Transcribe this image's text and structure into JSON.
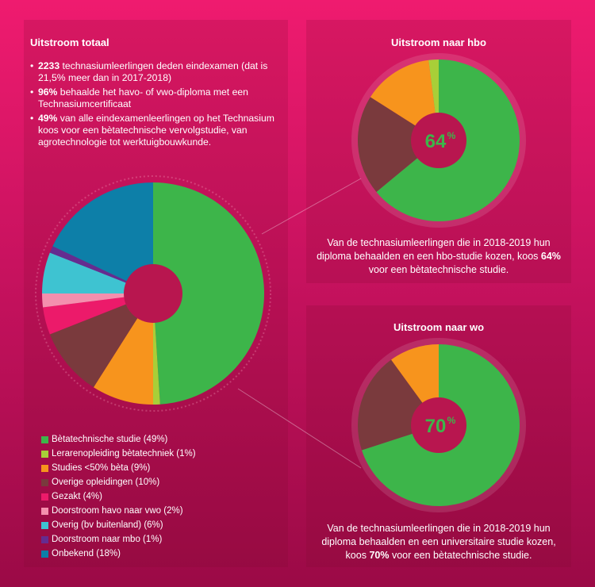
{
  "colors": {
    "green": "#3db54a",
    "lime": "#a8cf38",
    "orange": "#f7941d",
    "brown": "#7a3a3d",
    "pink": "#ec1a6a",
    "lightpink": "#f48fae",
    "cyan": "#3ec3d1",
    "purple": "#652c90",
    "blue": "#0d7fa8",
    "center": "#b8164f"
  },
  "left": {
    "title": "Uitstroom totaal",
    "bullets": [
      {
        "bold": "2233",
        "text": " technasiumleerlingen deden eindexamen (dat is 21,5% meer dan in 2017-2018)"
      },
      {
        "bold": "96%",
        "text": " behaalde het havo- of vwo-diploma met een Technasiumcertificaat"
      },
      {
        "bold": "49%",
        "text": " van alle eindexamenleerlingen op het Technasium koos voor een bètatechnische vervolgstudie, van agrotechnologie tot werktuigbouwkunde."
      }
    ]
  },
  "hbo": {
    "title": "Uitstroom naar hbo",
    "center_value": "64",
    "center_unit": "%",
    "caption_pre": "Van de technasiumleerlingen die in 2018-2019 hun diploma behaalden en een hbo-studie kozen, koos ",
    "caption_bold": "64%",
    "caption_post": " voor een bètatechnische studie."
  },
  "wo": {
    "title": "Uitstroom naar wo",
    "center_value": "70",
    "center_unit": "%",
    "caption_pre": "Van de technasiumleerlingen die in 2018-2019 hun diploma behaalden en een universitaire studie kozen, koos ",
    "caption_bold": "70%",
    "caption_post": " voor een bètatechnische studie."
  },
  "chart_data": [
    {
      "type": "pie",
      "categories": [
        "Bètatechnische studie",
        "Lerarenopleiding bètatechniek",
        "Studies <50% bèta",
        "Overige opleidingen",
        "Gezakt",
        "Doorstroom havo naar vwo",
        "Overig (bv buitenland)",
        "Doorstroom naar mbo",
        "Onbekend"
      ],
      "values": [
        49,
        1,
        9,
        10,
        4,
        2,
        6,
        1,
        18
      ],
      "legend": [
        "Bètatechnische studie (49%)",
        "Lerarenopleiding bètatechniek (1%)",
        "Studies <50% bèta (9%)",
        "Overige opleidingen (10%)",
        "Gezakt (4%)",
        "Doorstroom havo naar vwo (2%)",
        "Overig (bv buitenland) (6%)",
        "Doorstroom naar mbo (1%)",
        "Onbekend (18%)"
      ],
      "colors": [
        "#3db54a",
        "#a8cf38",
        "#f7941d",
        "#7a3a3d",
        "#ec1a6a",
        "#f48fae",
        "#3ec3d1",
        "#652c90",
        "#0d7fa8"
      ],
      "legend_position": "bottom-left"
    },
    {
      "type": "pie",
      "categories": [
        "Bètatechnische studie",
        "Overige opleidingen",
        "Studies <50% bèta",
        "Lerarenopleiding bètatechniek"
      ],
      "values": [
        64,
        20,
        14,
        2
      ],
      "colors": [
        "#3db54a",
        "#7a3a3d",
        "#f7941d",
        "#a8cf38"
      ]
    },
    {
      "type": "pie",
      "categories": [
        "Bètatechnische studie",
        "Overige opleidingen",
        "Studies <50% bèta"
      ],
      "values": [
        70,
        20,
        10
      ],
      "colors": [
        "#3db54a",
        "#7a3a3d",
        "#f7941d"
      ]
    }
  ]
}
